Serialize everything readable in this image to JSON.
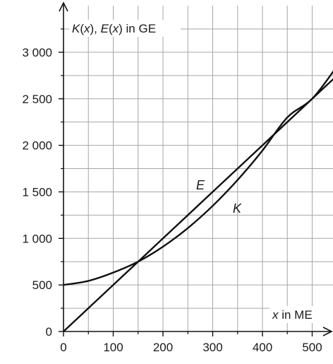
{
  "chart_data": {
    "type": "line",
    "ylabel_parts": [
      "K",
      "(",
      "x",
      "), ",
      "E",
      "(",
      "x",
      ") in GE"
    ],
    "xlabel_parts": [
      "x",
      " in ME"
    ],
    "xlim": [
      0,
      550
    ],
    "ylim": [
      0,
      3300
    ],
    "x_ticks": [
      0,
      100,
      200,
      300,
      400,
      500
    ],
    "x_tick_labels": [
      "0",
      "100",
      "200",
      "300",
      "400",
      "500"
    ],
    "y_ticks": [
      0,
      500,
      1000,
      1500,
      2000,
      2500,
      3000
    ],
    "y_tick_labels": [
      "0",
      "500",
      "1 000",
      "1 500",
      "2 000",
      "2 500",
      "3 000"
    ],
    "x_minor_step": 50,
    "y_minor_step": 250,
    "grid": true,
    "series": [
      {
        "name": "E",
        "x": [
          0,
          100,
          150,
          200,
          300,
          400,
          500,
          550
        ],
        "y": [
          0,
          500,
          750,
          1000,
          1500,
          2000,
          2500,
          2750
        ]
      },
      {
        "name": "K",
        "x": [
          0,
          50,
          100,
          150,
          200,
          250,
          300,
          350,
          400,
          450,
          500,
          550
        ],
        "y": [
          500,
          544,
          633,
          750,
          911,
          1111,
          1350,
          1628,
          1944,
          2300,
          2500,
          2850
        ]
      }
    ],
    "colors": {
      "curve": "#111111",
      "grid": "#a6a6a6",
      "axis": "#111111"
    }
  }
}
